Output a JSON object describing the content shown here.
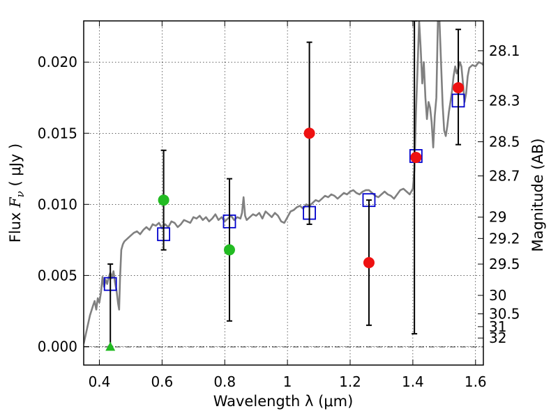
{
  "chart_data": {
    "type": "scatter",
    "xlabel": "Wavelength  λ (μm)",
    "ylabel": {
      "prefix": "Flux  ",
      "symbol": "F",
      "subscript": "ν",
      "suffix": "  ( μJy )"
    },
    "ylabel_right": "Magnitude (AB)",
    "xlim": [
      0.35,
      1.625
    ],
    "ylim": [
      -0.0013,
      0.0229
    ],
    "x_ticks": [
      0.4,
      0.6,
      0.8,
      1.0,
      1.2,
      1.4,
      1.6
    ],
    "x_tick_labels": [
      "0.4",
      "0.6",
      "0.8",
      "1",
      "1.2",
      "1.4",
      "1.6"
    ],
    "y_ticks": [
      0.0,
      0.005,
      0.01,
      0.015,
      0.02
    ],
    "y_tick_labels": [
      "0.000",
      "0.005",
      "0.010",
      "0.015",
      "0.020"
    ],
    "right_ticks": [
      {
        "flux": 0.0208,
        "label": "28.1"
      },
      {
        "flux": 0.0173,
        "label": "28.3"
      },
      {
        "flux": 0.0144,
        "label": "28.5"
      },
      {
        "flux": 0.012,
        "label": "28.7"
      },
      {
        "flux": 0.0091,
        "label": "29"
      },
      {
        "flux": 0.0076,
        "label": "29.2"
      },
      {
        "flux": 0.0058,
        "label": "29.5"
      },
      {
        "flux": 0.0036,
        "label": "30"
      },
      {
        "flux": 0.0023,
        "label": "30.5"
      },
      {
        "flux": 0.0014,
        "label": "31"
      },
      {
        "flux": 0.0006,
        "label": "32"
      }
    ],
    "grid": true,
    "series": [
      {
        "kind": "line",
        "color": "#808080",
        "points": [
          [
            0.35,
            0.0002
          ],
          [
            0.36,
            0.0012
          ],
          [
            0.37,
            0.0022
          ],
          [
            0.38,
            0.0029
          ],
          [
            0.385,
            0.0032
          ],
          [
            0.39,
            0.0026
          ],
          [
            0.395,
            0.0034
          ],
          [
            0.4,
            0.0031
          ],
          [
            0.405,
            0.0038
          ],
          [
            0.41,
            0.0049
          ],
          [
            0.415,
            0.0042
          ],
          [
            0.42,
            0.0047
          ],
          [
            0.425,
            0.0044
          ],
          [
            0.43,
            0.0049
          ],
          [
            0.435,
            0.0052
          ],
          [
            0.44,
            0.0048
          ],
          [
            0.445,
            0.0053
          ],
          [
            0.45,
            0.0045
          ],
          [
            0.455,
            0.0039
          ],
          [
            0.46,
            0.003
          ],
          [
            0.463,
            0.0026
          ],
          [
            0.466,
            0.0048
          ],
          [
            0.47,
            0.0068
          ],
          [
            0.475,
            0.0072
          ],
          [
            0.48,
            0.0074
          ],
          [
            0.49,
            0.0076
          ],
          [
            0.5,
            0.0078
          ],
          [
            0.51,
            0.008
          ],
          [
            0.52,
            0.0081
          ],
          [
            0.53,
            0.0079
          ],
          [
            0.54,
            0.0082
          ],
          [
            0.55,
            0.0084
          ],
          [
            0.56,
            0.0082
          ],
          [
            0.57,
            0.0086
          ],
          [
            0.58,
            0.0085
          ],
          [
            0.59,
            0.0087
          ],
          [
            0.6,
            0.0083
          ],
          [
            0.61,
            0.0086
          ],
          [
            0.62,
            0.0084
          ],
          [
            0.63,
            0.0088
          ],
          [
            0.64,
            0.0087
          ],
          [
            0.65,
            0.0084
          ],
          [
            0.66,
            0.0086
          ],
          [
            0.67,
            0.0089
          ],
          [
            0.68,
            0.0088
          ],
          [
            0.69,
            0.0087
          ],
          [
            0.7,
            0.0091
          ],
          [
            0.71,
            0.009
          ],
          [
            0.72,
            0.0092
          ],
          [
            0.73,
            0.0089
          ],
          [
            0.74,
            0.0091
          ],
          [
            0.75,
            0.0088
          ],
          [
            0.76,
            0.009
          ],
          [
            0.77,
            0.0093
          ],
          [
            0.78,
            0.0089
          ],
          [
            0.79,
            0.0091
          ],
          [
            0.8,
            0.0088
          ],
          [
            0.81,
            0.009
          ],
          [
            0.82,
            0.0092
          ],
          [
            0.83,
            0.0089
          ],
          [
            0.84,
            0.0091
          ],
          [
            0.85,
            0.009
          ],
          [
            0.855,
            0.0094
          ],
          [
            0.86,
            0.0105
          ],
          [
            0.865,
            0.0092
          ],
          [
            0.87,
            0.0089
          ],
          [
            0.88,
            0.0091
          ],
          [
            0.89,
            0.0093
          ],
          [
            0.9,
            0.0092
          ],
          [
            0.91,
            0.0094
          ],
          [
            0.92,
            0.009
          ],
          [
            0.93,
            0.0095
          ],
          [
            0.94,
            0.0093
          ],
          [
            0.95,
            0.0091
          ],
          [
            0.96,
            0.0094
          ],
          [
            0.97,
            0.0092
          ],
          [
            0.98,
            0.0088
          ],
          [
            0.99,
            0.0087
          ],
          [
            1.0,
            0.0091
          ],
          [
            1.01,
            0.0095
          ],
          [
            1.02,
            0.0096
          ],
          [
            1.03,
            0.0098
          ],
          [
            1.04,
            0.0099
          ],
          [
            1.05,
            0.0097
          ],
          [
            1.06,
            0.01
          ],
          [
            1.07,
            0.0099
          ],
          [
            1.08,
            0.0101
          ],
          [
            1.09,
            0.0103
          ],
          [
            1.1,
            0.0102
          ],
          [
            1.11,
            0.0104
          ],
          [
            1.12,
            0.0106
          ],
          [
            1.13,
            0.0105
          ],
          [
            1.14,
            0.0107
          ],
          [
            1.15,
            0.0106
          ],
          [
            1.16,
            0.0104
          ],
          [
            1.17,
            0.0106
          ],
          [
            1.18,
            0.0108
          ],
          [
            1.19,
            0.0107
          ],
          [
            1.2,
            0.0109
          ],
          [
            1.21,
            0.011
          ],
          [
            1.22,
            0.0108
          ],
          [
            1.23,
            0.0107
          ],
          [
            1.24,
            0.0109
          ],
          [
            1.25,
            0.011
          ],
          [
            1.26,
            0.011
          ],
          [
            1.27,
            0.0108
          ],
          [
            1.28,
            0.0106
          ],
          [
            1.29,
            0.0105
          ],
          [
            1.3,
            0.0107
          ],
          [
            1.31,
            0.0109
          ],
          [
            1.32,
            0.0107
          ],
          [
            1.33,
            0.0106
          ],
          [
            1.34,
            0.0104
          ],
          [
            1.35,
            0.0107
          ],
          [
            1.36,
            0.011
          ],
          [
            1.37,
            0.0111
          ],
          [
            1.38,
            0.0109
          ],
          [
            1.39,
            0.0107
          ],
          [
            1.4,
            0.0111
          ],
          [
            1.405,
            0.0124
          ],
          [
            1.41,
            0.0165
          ],
          [
            1.415,
            0.0195
          ],
          [
            1.42,
            0.0229
          ],
          [
            1.425,
            0.021
          ],
          [
            1.43,
            0.0185
          ],
          [
            1.435,
            0.02
          ],
          [
            1.44,
            0.0175
          ],
          [
            1.445,
            0.016
          ],
          [
            1.45,
            0.0172
          ],
          [
            1.455,
            0.0168
          ],
          [
            1.46,
            0.0158
          ],
          [
            1.465,
            0.014
          ],
          [
            1.47,
            0.0162
          ],
          [
            1.475,
            0.0175
          ],
          [
            1.48,
            0.0229
          ],
          [
            1.485,
            0.0229
          ],
          [
            1.49,
            0.02
          ],
          [
            1.495,
            0.017
          ],
          [
            1.5,
            0.0152
          ],
          [
            1.505,
            0.0148
          ],
          [
            1.51,
            0.0155
          ],
          [
            1.515,
            0.0165
          ],
          [
            1.52,
            0.0172
          ],
          [
            1.525,
            0.018
          ],
          [
            1.53,
            0.019
          ],
          [
            1.535,
            0.0197
          ],
          [
            1.54,
            0.0192
          ],
          [
            1.545,
            0.0195
          ],
          [
            1.55,
            0.02
          ],
          [
            1.555,
            0.0197
          ],
          [
            1.56,
            0.0185
          ],
          [
            1.565,
            0.0172
          ],
          [
            1.57,
            0.0178
          ],
          [
            1.575,
            0.019
          ],
          [
            1.58,
            0.0196
          ],
          [
            1.59,
            0.0198
          ],
          [
            1.6,
            0.0197
          ],
          [
            1.61,
            0.02
          ],
          [
            1.62,
            0.0199
          ],
          [
            1.625,
            0.0198
          ]
        ]
      },
      {
        "kind": "squares",
        "color": "#0000cc",
        "points": [
          [
            0.435,
            0.0044
          ],
          [
            0.605,
            0.0079
          ],
          [
            0.815,
            0.0088
          ],
          [
            1.07,
            0.0094
          ],
          [
            1.26,
            0.0103
          ],
          [
            1.41,
            0.0134
          ],
          [
            1.545,
            0.0173
          ]
        ]
      },
      {
        "kind": "errorbars",
        "color": "#000000",
        "bars": [
          [
            0.435,
            0.0,
            0.0058
          ],
          [
            0.605,
            0.0068,
            0.0138
          ],
          [
            0.815,
            0.0018,
            0.0118
          ],
          [
            1.07,
            0.0086,
            0.0214
          ],
          [
            1.26,
            0.0015,
            0.0103
          ],
          [
            1.405,
            0.0009,
            0.0229
          ],
          [
            1.545,
            0.0142,
            0.0223
          ]
        ]
      },
      {
        "kind": "circles",
        "color": "#22bb22",
        "points": [
          [
            0.605,
            0.0103
          ],
          [
            0.815,
            0.0068
          ]
        ]
      },
      {
        "kind": "triangles",
        "color": "#22bb22",
        "points": [
          [
            0.435,
            0.0
          ]
        ]
      },
      {
        "kind": "circles",
        "color": "#ee1111",
        "points": [
          [
            1.07,
            0.015
          ],
          [
            1.26,
            0.0059
          ],
          [
            1.41,
            0.0133
          ],
          [
            1.545,
            0.0182
          ]
        ]
      }
    ]
  }
}
